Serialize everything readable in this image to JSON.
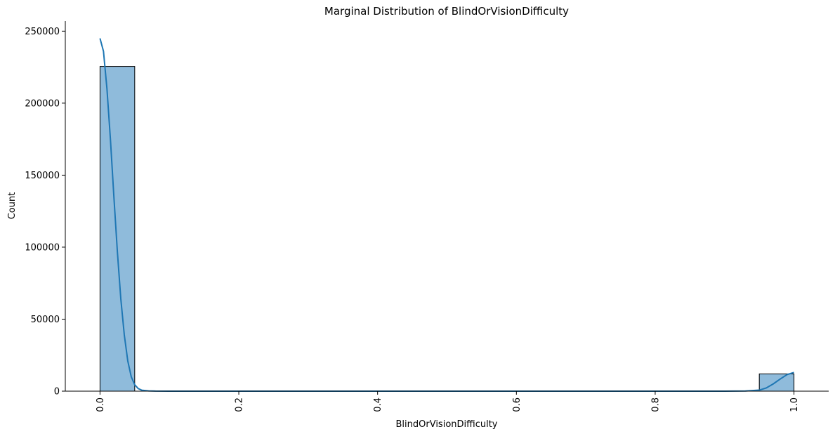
{
  "chart_data": {
    "type": "bar",
    "title": "Marginal Distribution of BlindOrVisionDifficulty",
    "xlabel": "BlindOrVisionDifficulty",
    "ylabel": "Count",
    "xlim": [
      -0.05,
      1.05
    ],
    "ylim": [
      0,
      257000
    ],
    "x_ticks": [
      0.0,
      0.2,
      0.4,
      0.6,
      0.8,
      1.0
    ],
    "x_tick_labels": [
      "0.0",
      "0.2",
      "0.4",
      "0.6",
      "0.8",
      "1.0"
    ],
    "y_ticks": [
      0,
      50000,
      100000,
      150000,
      200000,
      250000
    ],
    "y_tick_labels": [
      "0",
      "50000",
      "100000",
      "150000",
      "200000",
      "250000"
    ],
    "bins": [
      {
        "start": 0.0,
        "end": 0.05,
        "count": 225500
      },
      {
        "start": 0.95,
        "end": 1.0,
        "count": 12000
      }
    ],
    "kde": [
      [
        0.0,
        245000
      ],
      [
        0.005,
        236000
      ],
      [
        0.01,
        210000
      ],
      [
        0.015,
        175000
      ],
      [
        0.02,
        135000
      ],
      [
        0.025,
        97000
      ],
      [
        0.03,
        64000
      ],
      [
        0.035,
        39000
      ],
      [
        0.04,
        21000
      ],
      [
        0.045,
        10000
      ],
      [
        0.05,
        4500
      ],
      [
        0.055,
        1800
      ],
      [
        0.06,
        700
      ],
      [
        0.07,
        200
      ],
      [
        0.08,
        60
      ],
      [
        0.1,
        0
      ],
      [
        0.5,
        0
      ],
      [
        0.9,
        0
      ],
      [
        0.93,
        100
      ],
      [
        0.95,
        700
      ],
      [
        0.96,
        2200
      ],
      [
        0.97,
        5000
      ],
      [
        0.98,
        8400
      ],
      [
        0.99,
        11500
      ],
      [
        1.0,
        13000
      ]
    ],
    "grid": false,
    "legend": "none",
    "colors": {
      "bar_fill": "#8fbbdb",
      "bar_edge": "#000000",
      "kde_line": "#1f77b4"
    }
  }
}
